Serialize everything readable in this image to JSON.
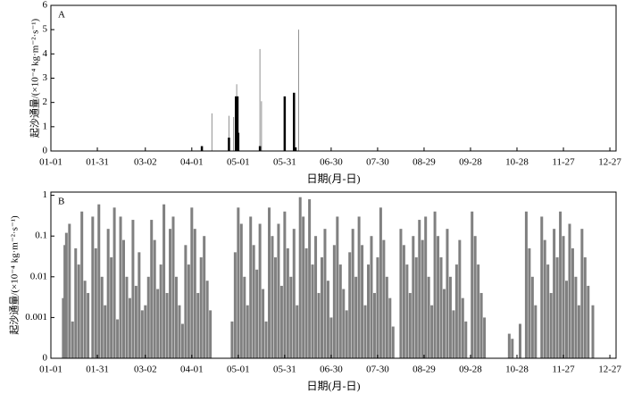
{
  "chart_data": [
    {
      "type": "bar",
      "panel": "A",
      "ylabel": "起沙通量/(×10⁻⁴ kg·m⁻²·s⁻¹)",
      "xlabel": "日期(月-日)",
      "xlim": [
        0,
        365
      ],
      "ylim": [
        0,
        6
      ],
      "log": false,
      "xticks": [
        {
          "value": 0,
          "label": "01-01"
        },
        {
          "value": 30,
          "label": "01-31"
        },
        {
          "value": 61,
          "label": "03-02"
        },
        {
          "value": 91,
          "label": "04-01"
        },
        {
          "value": 121,
          "label": "05-01"
        },
        {
          "value": 151,
          "label": "05-31"
        },
        {
          "value": 181,
          "label": "06-30"
        },
        {
          "value": 211,
          "label": "07-30"
        },
        {
          "value": 241,
          "label": "08-29"
        },
        {
          "value": 271,
          "label": "09-28"
        },
        {
          "value": 301,
          "label": "10-28"
        },
        {
          "value": 331,
          "label": "11-27"
        },
        {
          "value": 361,
          "label": "12-27"
        }
      ],
      "yticks": [
        0,
        1,
        2,
        3,
        4,
        5,
        6
      ],
      "series": [
        {
          "color": "#909090",
          "width": 1,
          "x": [
            104,
            115,
            118,
            120,
            135,
            136,
            160
          ],
          "values": [
            1.55,
            1.45,
            1.4,
            2.75,
            4.2,
            2.05,
            5.0
          ]
        },
        {
          "color": "#000000",
          "width": 2.5,
          "x": [
            97.5,
            115,
            119.5,
            120.5,
            121,
            135,
            151,
            157,
            158
          ],
          "values": [
            0.2,
            0.55,
            2.25,
            2.25,
            0.75,
            0.2,
            2.25,
            2.4,
            0.15
          ]
        }
      ]
    },
    {
      "type": "bar",
      "panel": "B",
      "ylabel": "起沙通量/(×10⁻⁴ kg·m⁻²·s⁻¹)",
      "xlabel": "日期(月-日)",
      "xlim": [
        0,
        365
      ],
      "ylim": [
        0.0001,
        1.2
      ],
      "log": true,
      "xticks": [
        {
          "value": 0,
          "label": "01-01"
        },
        {
          "value": 30,
          "label": "01-31"
        },
        {
          "value": 61,
          "label": "03-02"
        },
        {
          "value": 91,
          "label": "04-01"
        },
        {
          "value": 121,
          "label": "05-01"
        },
        {
          "value": 151,
          "label": "05-31"
        },
        {
          "value": 181,
          "label": "06-30"
        },
        {
          "value": 211,
          "label": "07-30"
        },
        {
          "value": 241,
          "label": "08-29"
        },
        {
          "value": 271,
          "label": "09-28"
        },
        {
          "value": 301,
          "label": "10-28"
        },
        {
          "value": 331,
          "label": "11-27"
        },
        {
          "value": 361,
          "label": "12-27"
        }
      ],
      "yticks": [
        {
          "value": 0.0001,
          "label": "0"
        },
        0.001,
        0.01,
        0.1,
        1
      ],
      "series": [
        {
          "color": "#808080",
          "width": 3,
          "x": [
            8,
            9,
            10,
            12,
            14,
            16,
            18,
            20,
            22,
            24,
            27,
            29,
            31,
            33,
            35,
            37,
            39,
            41,
            43,
            45,
            47,
            49,
            51,
            53,
            55,
            57,
            59,
            61,
            63,
            65,
            67,
            69,
            71,
            73,
            75,
            77,
            79,
            81,
            83,
            85,
            87,
            89,
            91,
            93,
            95,
            97,
            99,
            101,
            103,
            117,
            119,
            121,
            123,
            125,
            127,
            129,
            131,
            133,
            135,
            137,
            139,
            141,
            143,
            145,
            147,
            149,
            151,
            153,
            155,
            157,
            159,
            161,
            163,
            165,
            167,
            169,
            171,
            173,
            175,
            177,
            179,
            181,
            183,
            185,
            187,
            189,
            191,
            193,
            195,
            197,
            199,
            201,
            203,
            205,
            207,
            209,
            211,
            213,
            215,
            217,
            219,
            221,
            226,
            228,
            230,
            232,
            234,
            236,
            238,
            240,
            242,
            244,
            246,
            248,
            250,
            252,
            254,
            256,
            258,
            260,
            262,
            264,
            266,
            268,
            272,
            274,
            276,
            278,
            280,
            296,
            298,
            303,
            307,
            309,
            311,
            313,
            317,
            319,
            321,
            323,
            325,
            327,
            329,
            331,
            333,
            335,
            337,
            339,
            341,
            343,
            345,
            347,
            350
          ],
          "values": [
            0.003,
            0.06,
            0.12,
            0.2,
            0.0008,
            0.05,
            0.02,
            0.4,
            0.008,
            0.004,
            0.3,
            0.05,
            0.6,
            0.01,
            0.002,
            0.15,
            0.03,
            0.5,
            0.0009,
            0.3,
            0.08,
            0.01,
            0.003,
            0.25,
            0.006,
            0.04,
            0.0015,
            0.002,
            0.01,
            0.25,
            0.08,
            0.005,
            0.02,
            0.6,
            0.004,
            0.15,
            0.3,
            0.01,
            0.002,
            0.0007,
            0.06,
            0.02,
            0.5,
            0.15,
            0.004,
            0.03,
            0.1,
            0.008,
            0.0015,
            0.0008,
            0.04,
            0.5,
            0.2,
            0.01,
            0.002,
            0.3,
            0.06,
            0.015,
            0.2,
            0.005,
            0.0008,
            0.5,
            0.1,
            0.03,
            0.2,
            0.006,
            0.4,
            0.05,
            0.01,
            0.15,
            0.002,
            0.9,
            0.3,
            0.05,
            0.8,
            0.02,
            0.1,
            0.004,
            0.03,
            0.15,
            0.008,
            0.001,
            0.06,
            0.3,
            0.02,
            0.005,
            0.0015,
            0.04,
            0.15,
            0.01,
            0.3,
            0.06,
            0.002,
            0.02,
            0.1,
            0.004,
            0.03,
            0.5,
            0.08,
            0.01,
            0.003,
            0.0006,
            0.15,
            0.06,
            0.02,
            0.004,
            0.1,
            0.03,
            0.25,
            0.08,
            0.3,
            0.01,
            0.002,
            0.4,
            0.1,
            0.03,
            0.005,
            0.15,
            0.01,
            0.0015,
            0.02,
            0.08,
            0.003,
            0.0008,
            0.4,
            0.1,
            0.02,
            0.004,
            0.001,
            0.0004,
            0.0003,
            0.0007,
            0.4,
            0.05,
            0.01,
            0.002,
            0.3,
            0.08,
            0.02,
            0.004,
            0.15,
            0.03,
            0.4,
            0.1,
            0.008,
            0.2,
            0.05,
            0.01,
            0.002,
            0.15,
            0.03,
            0.006,
            0.002
          ]
        }
      ]
    }
  ]
}
